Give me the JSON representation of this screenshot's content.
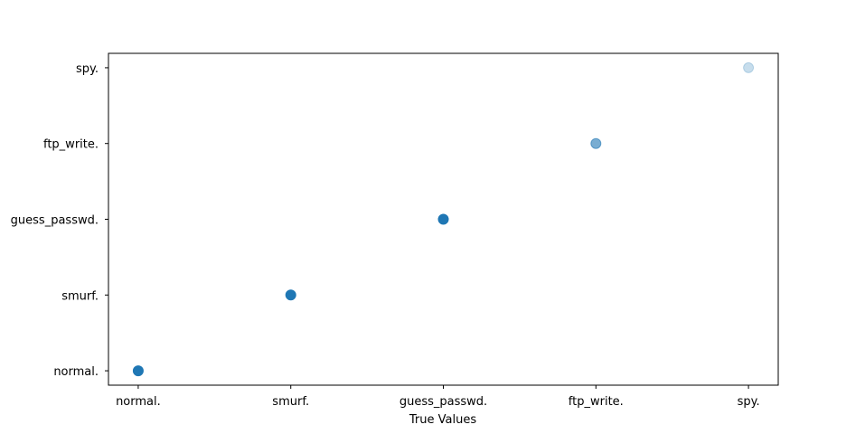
{
  "chart_data": {
    "type": "scatter",
    "title": "",
    "xlabel": "True Values",
    "ylabel": "",
    "x_categories": [
      "normal.",
      "smurf.",
      "guess_passwd.",
      "ftp_write.",
      "spy."
    ],
    "y_categories": [
      "normal.",
      "smurf.",
      "guess_passwd.",
      "ftp_write.",
      "spy."
    ],
    "points": [
      {
        "x": "normal.",
        "y": "normal.",
        "opacity": 1.0
      },
      {
        "x": "smurf.",
        "y": "smurf.",
        "opacity": 1.0
      },
      {
        "x": "guess_passwd.",
        "y": "guess_passwd.",
        "opacity": 1.0
      },
      {
        "x": "ftp_write.",
        "y": "ftp_write.",
        "opacity": 0.6
      },
      {
        "x": "spy.",
        "y": "spy.",
        "opacity": 0.25
      }
    ],
    "marker_color": "#1f77b4",
    "grid": false,
    "legend": "none"
  }
}
